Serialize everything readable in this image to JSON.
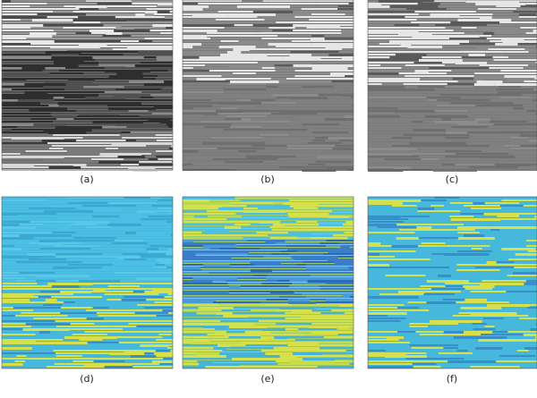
{
  "panels": [
    {
      "label": "(a)"
    },
    {
      "label": "(b)"
    },
    {
      "label": "(c)"
    },
    {
      "label": "(d)"
    },
    {
      "label": "(e)"
    },
    {
      "label": "(f)"
    }
  ]
}
